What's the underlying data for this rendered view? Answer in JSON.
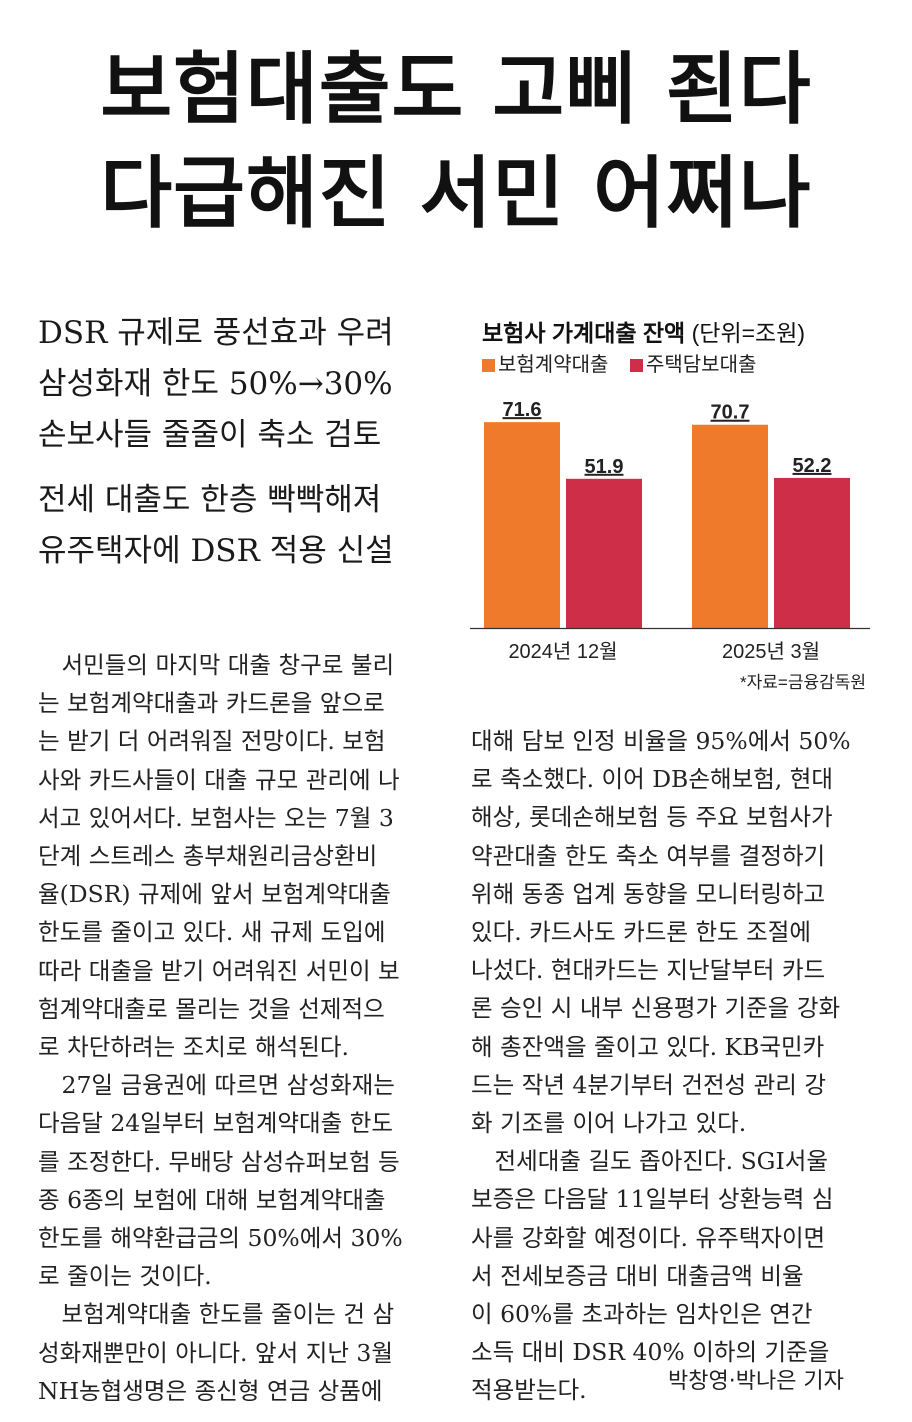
{
  "headline": [
    "보험대출도 고삐 죈다",
    "다급해진 서민 어쩌나"
  ],
  "subheads": [
    [
      "DSR 규제로 풍선효과 우려",
      "삼성화재 한도 50%→30%",
      "손보사들 줄줄이 축소 검토"
    ],
    [
      "전세 대출도 한층 빡빡해져",
      "유주택자에 DSR 적용 신설"
    ]
  ],
  "chart": {
    "title": "보험사 가계대출 잔액",
    "unit": "(단위=조원)",
    "source": "*자료=금융감독원",
    "colors": {
      "insurance_policy_loan": "#f07a2b",
      "mortgage_loan": "#cf2e49"
    }
  },
  "chart_data": {
    "type": "bar",
    "title": "보험사 가계대출 잔액",
    "unit": "(단위=조원)",
    "categories": [
      "2024년 12월",
      "2025년 3월"
    ],
    "series": [
      {
        "name": "보험계약대출",
        "values": [
          71.6,
          70.7
        ]
      },
      {
        "name": "주택담보대출",
        "values": [
          51.9,
          52.2
        ]
      }
    ],
    "ylim": [
      0,
      80
    ],
    "grid": false,
    "legend": "top-left"
  },
  "body": {
    "col1": [
      "　서민들의 마지막 대출 창구로 불리",
      "는 보험계약대출과 카드론을 앞으로",
      "는 받기 더 어려워질 전망이다. 보험",
      "사와 카드사들이 대출 규모 관리에 나",
      "서고 있어서다. 보험사는 오는 7월 3",
      "단계 스트레스 총부채원리금상환비",
      "율(DSR) 규제에 앞서 보험계약대출",
      "한도를 줄이고 있다. 새 규제 도입에",
      "따라 대출을 받기 어려워진 서민이 보",
      "험계약대출로 몰리는 것을 선제적으",
      "로 차단하려는 조치로 해석된다.",
      "　27일 금융권에 따르면 삼성화재는",
      "다음달 24일부터 보험계약대출 한도",
      "를 조정한다. 무배당 삼성슈퍼보험 등",
      "종 6종의 보험에 대해 보험계약대출",
      "한도를 해약환급금의 50%에서 30%",
      "로 줄이는 것이다.",
      "　보험계약대출 한도를 줄이는 건 삼",
      "성화재뿐만이 아니다. 앞서 지난 3월",
      "NH농협생명은 종신형 연금 상품에"
    ],
    "col2": [
      "대해 담보 인정 비율을 95%에서 50%",
      "로 축소했다. 이어 DB손해보험, 현대",
      "해상, 롯데손해보험 등 주요 보험사가",
      "약관대출 한도 축소 여부를 결정하기",
      "위해 동종 업계 동향을 모니터링하고",
      "있다. 카드사도 카드론 한도 조절에",
      "나섰다. 현대카드는 지난달부터 카드",
      "론 승인 시 내부 신용평가 기준을 강화",
      "해 총잔액을 줄이고 있다. KB국민카",
      "드는 작년 4분기부터 건전성 관리 강",
      "화 기조를 이어 나가고 있다.",
      "　전세대출 길도 좁아진다. SGI서울",
      "보증은 다음달 11일부터 상환능력 심",
      "사를 강화할 예정이다. 유주택자이면",
      "서 전세보증금 대비 대출금액 비율",
      "이 60%를 초과하는 임차인은 연간",
      "소득 대비 DSR 40% 이하의 기준을",
      "적용받는다."
    ]
  },
  "byline": "박창영·박나은 기자"
}
